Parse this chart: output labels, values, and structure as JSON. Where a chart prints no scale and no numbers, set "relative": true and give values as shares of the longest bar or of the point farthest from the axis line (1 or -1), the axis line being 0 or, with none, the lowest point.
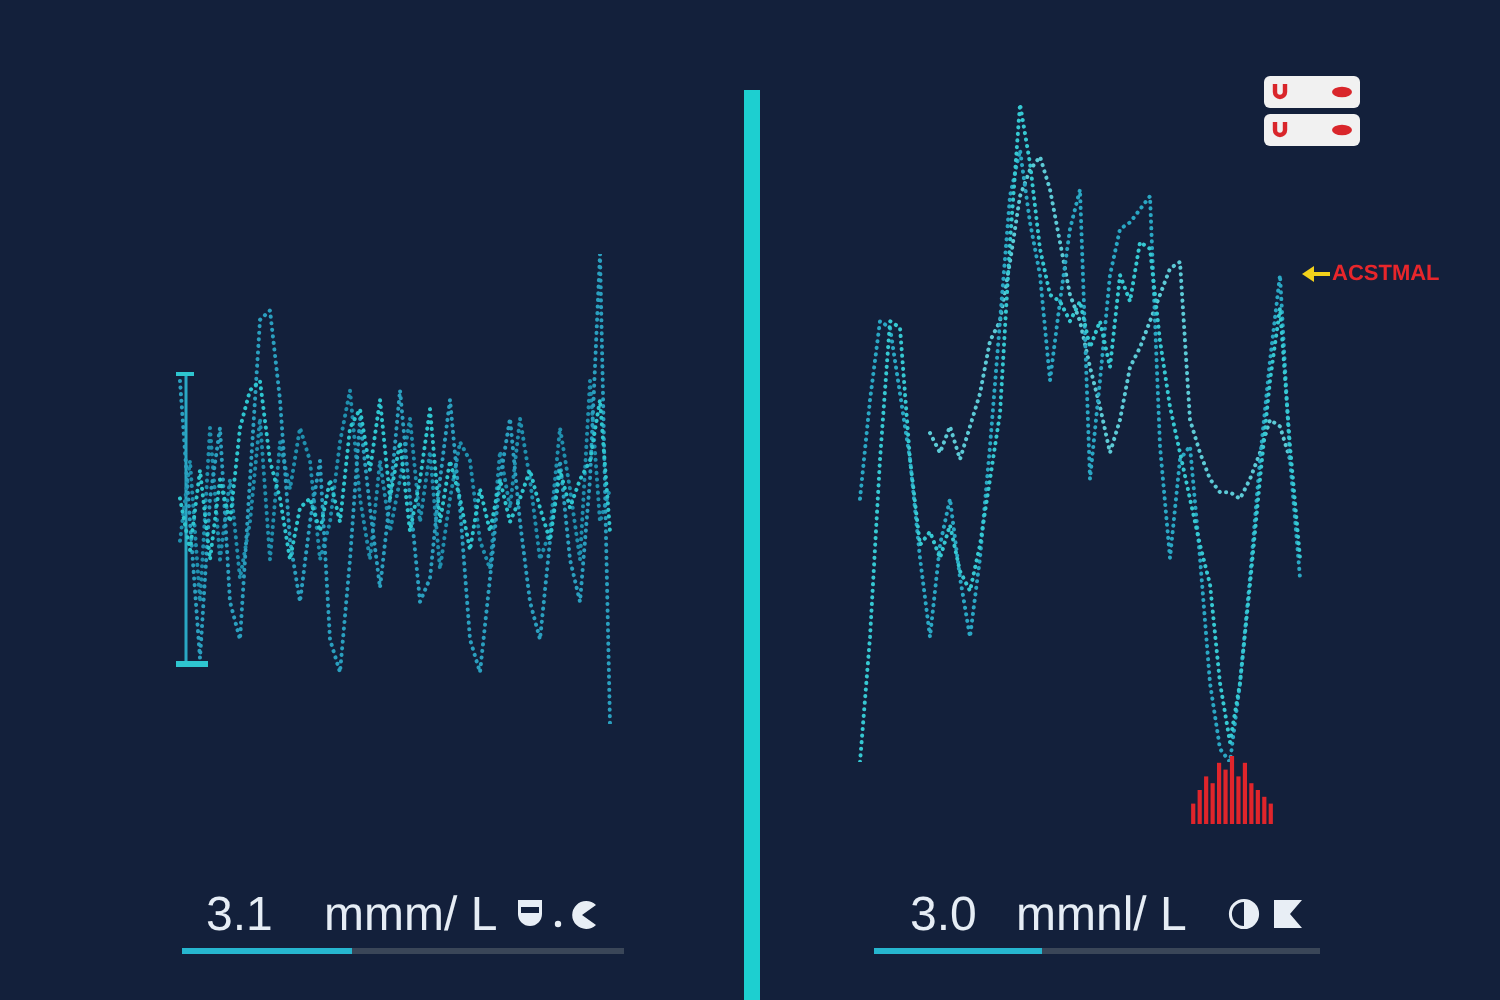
{
  "chart_data": [
    {
      "type": "line",
      "relative": true,
      "line_style": "dotted",
      "categories": [
        null,
        null,
        null,
        null,
        null,
        null,
        null,
        null,
        null,
        null,
        null,
        null,
        null,
        null,
        null,
        null,
        null,
        null,
        null,
        null,
        null,
        null,
        null,
        null,
        null,
        null,
        null,
        null,
        null,
        null,
        null,
        null,
        null,
        null,
        null,
        null,
        null,
        null,
        null,
        null,
        null,
        null,
        null,
        null
      ],
      "series": [
        {
          "color": "#2ec5cf",
          "values": [
            0.48,
            0.37,
            0.54,
            0.35,
            0.52,
            0.43,
            0.63,
            0.71,
            0.73,
            0.56,
            0.48,
            0.35,
            0.46,
            0.48,
            0.41,
            0.52,
            0.43,
            0.63,
            0.67,
            0.54,
            0.69,
            0.48,
            0.6,
            0.41,
            0.52,
            0.67,
            0.43,
            0.56,
            0.48,
            0.37,
            0.5,
            0.41,
            0.52,
            0.43,
            0.48,
            0.54,
            0.46,
            0.39,
            0.54,
            0.46,
            0.52,
            0.56,
            0.69,
            0.41
          ]
        },
        {
          "color": "#2a9fbf",
          "values": [
            0.73,
            0.43,
            0.14,
            0.48,
            0.63,
            0.26,
            0.18,
            0.52,
            0.86,
            0.88,
            0.69,
            0.39,
            0.26,
            0.43,
            0.56,
            0.18,
            0.11,
            0.35,
            0.65,
            0.46,
            0.29,
            0.48,
            0.71,
            0.48,
            0.26,
            0.31,
            0.52,
            0.69,
            0.46,
            0.18,
            0.11,
            0.31,
            0.52,
            0.65,
            0.43,
            0.26,
            0.18,
            0.39,
            0.56,
            0.35,
            0.26,
            0.52,
            1.0,
            0.0
          ]
        },
        {
          "color": "#1f8fae",
          "values": [
            0.39,
            0.56,
            0.26,
            0.63,
            0.35,
            0.52,
            0.31,
            0.43,
            0.65,
            0.35,
            0.6,
            0.5,
            0.63,
            0.56,
            0.35,
            0.43,
            0.6,
            0.71,
            0.48,
            0.35,
            0.56,
            0.41,
            0.52,
            0.65,
            0.43,
            0.58,
            0.33,
            0.48,
            0.6,
            0.56,
            0.39,
            0.33,
            0.58,
            0.46,
            0.65,
            0.52,
            0.35,
            0.41,
            0.63,
            0.5,
            0.35,
            0.73,
            0.43,
            0.5
          ]
        }
      ],
      "annotations": [
        "3.1",
        "mmm/ L"
      ]
    },
    {
      "type": "line",
      "relative": true,
      "line_style": "dotted",
      "categories": [
        null,
        null,
        null,
        null,
        null,
        null,
        null,
        null,
        null,
        null,
        null,
        null,
        null,
        null,
        null,
        null,
        null,
        null,
        null,
        null,
        null,
        null,
        null,
        null,
        null,
        null,
        null,
        null,
        null,
        null,
        null,
        null,
        null,
        null,
        null,
        null,
        null,
        null,
        null,
        null,
        null,
        null,
        null,
        null,
        null
      ],
      "series": [
        {
          "color": "#36c8d2",
          "values": [
            0.0,
            0.19,
            0.46,
            0.67,
            0.66,
            0.46,
            0.33,
            0.35,
            0.31,
            0.36,
            0.29,
            0.26,
            0.33,
            0.43,
            0.53,
            0.79,
            1.0,
            0.91,
            0.78,
            0.71,
            0.7,
            0.67,
            0.7,
            0.63,
            0.67,
            0.6,
            0.74,
            0.7,
            0.79,
            0.78,
            0.64,
            0.54,
            0.47,
            0.4,
            0.33,
            0.27,
            0.12,
            0.03,
            0.12,
            0.27,
            0.43,
            0.58,
            0.69,
            0.48,
            0.31
          ]
        },
        {
          "color": "#2aa7c4",
          "values": [
            0.4,
            0.55,
            0.67,
            0.66,
            0.56,
            0.46,
            0.31,
            0.19,
            0.33,
            0.4,
            0.28,
            0.19,
            0.31,
            0.48,
            0.67,
            0.86,
            0.93,
            0.82,
            0.74,
            0.58,
            0.7,
            0.81,
            0.87,
            0.43,
            0.58,
            0.74,
            0.81,
            0.82,
            0.84,
            0.86,
            0.48,
            0.31,
            0.46,
            0.48,
            0.31,
            0.12,
            0.02,
            0.0,
            0.12,
            0.28,
            0.46,
            0.61,
            0.74,
            0.46,
            0.28
          ]
        },
        {
          "color": "#5ccad6",
          "values": [
            null,
            null,
            null,
            null,
            null,
            null,
            null,
            0.5,
            0.47,
            0.51,
            0.46,
            0.51,
            0.56,
            0.64,
            0.67,
            0.76,
            0.86,
            0.9,
            0.92,
            0.87,
            0.79,
            0.71,
            0.67,
            0.6,
            0.54,
            0.47,
            0.52,
            0.6,
            0.63,
            0.67,
            0.71,
            0.75,
            0.76,
            0.52,
            0.47,
            0.43,
            0.41,
            0.41,
            0.4,
            0.43,
            0.47,
            0.52,
            0.51,
            0.46,
            null
          ]
        }
      ],
      "annotations": [
        "3.0",
        "mmnl/ L",
        "ACSTMAL"
      ]
    },
    {
      "type": "bar",
      "relative": true,
      "categories": [
        null,
        null,
        null,
        null,
        null,
        null,
        null,
        null,
        null,
        null,
        null,
        null,
        null
      ],
      "series": [
        {
          "color": "#e0252b",
          "values": [
            0.3,
            0.5,
            0.7,
            0.6,
            0.9,
            0.8,
            1.0,
            0.7,
            0.9,
            0.6,
            0.5,
            0.4,
            0.3
          ]
        }
      ]
    }
  ]
}
